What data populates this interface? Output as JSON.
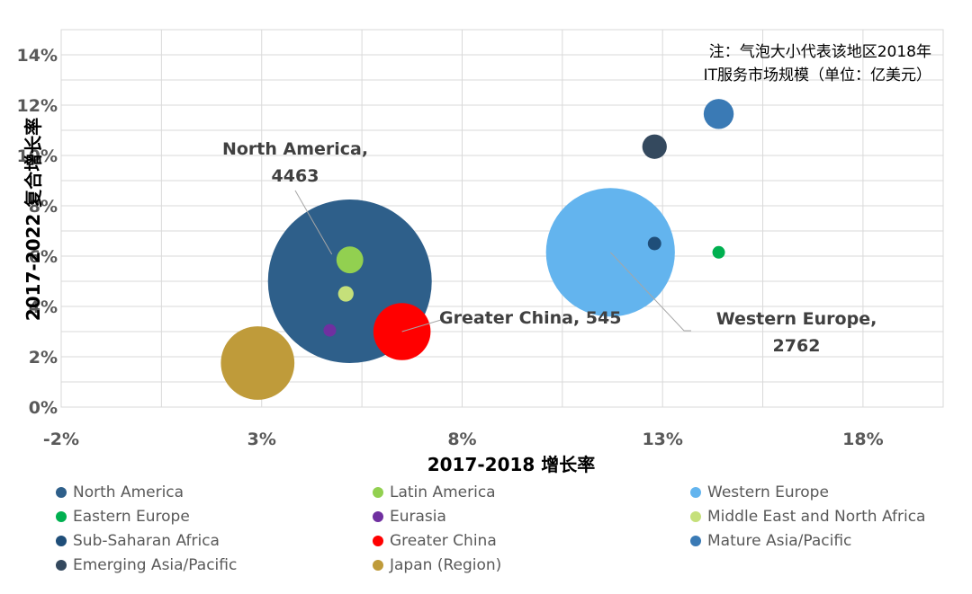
{
  "chart_data": {
    "type": "bubble",
    "xlabel": "2017-2018 增长率",
    "ylabel": "2017-2022 复合增长率",
    "xlim": [
      -2,
      20
    ],
    "ylim": [
      0,
      15
    ],
    "x_ticks": [
      "-2%",
      "3%",
      "8%",
      "13%",
      "18%"
    ],
    "x_tick_values": [
      -2,
      3,
      8,
      13,
      18
    ],
    "y_ticks": [
      "0%",
      "2%",
      "4%",
      "6%",
      "8%",
      "10%",
      "12%",
      "14%"
    ],
    "y_tick_values": [
      0,
      2,
      4,
      6,
      8,
      10,
      12,
      14
    ],
    "grid": true,
    "legend_position": "bottom",
    "note_lines": [
      "注：气泡大小代表该地区2018年",
      "IT服务市场规模（单位：亿美元）"
    ],
    "series": [
      {
        "name": "North America",
        "x": 5.2,
        "y": 5.0,
        "size": 4463,
        "color": "#2E5F8A"
      },
      {
        "name": "Latin America",
        "x": 5.2,
        "y": 5.85,
        "size": 120,
        "color": "#92D050"
      },
      {
        "name": "Western Europe",
        "x": 11.7,
        "y": 6.15,
        "size": 2762,
        "color": "#63B4EE"
      },
      {
        "name": "Eastern Europe",
        "x": 14.4,
        "y": 6.15,
        "size": 25,
        "color": "#00B050"
      },
      {
        "name": "Eurasia",
        "x": 4.7,
        "y": 3.05,
        "size": 8,
        "color": "#7030A0"
      },
      {
        "name": "Middle East and North Africa",
        "x": 5.1,
        "y": 4.5,
        "size": 40,
        "color": "#C5E07A"
      },
      {
        "name": "Sub-Saharan Africa",
        "x": 12.8,
        "y": 6.5,
        "size": 30,
        "color": "#1F4E79"
      },
      {
        "name": "Greater China",
        "x": 6.5,
        "y": 3.0,
        "size": 545,
        "color": "#FF0000"
      },
      {
        "name": "Mature Asia/Pacific",
        "x": 14.4,
        "y": 11.65,
        "size": 150,
        "color": "#3A7AB5"
      },
      {
        "name": "Emerging Asia/Pacific",
        "x": 12.8,
        "y": 10.35,
        "size": 100,
        "color": "#34495E"
      },
      {
        "name": "Japan (Region)",
        "x": 2.9,
        "y": 1.75,
        "size": 900,
        "color": "#BF9B3A"
      }
    ],
    "callouts": [
      {
        "series": "North America",
        "lines": [
          "North America,",
          "4463"
        ]
      },
      {
        "series": "Greater China",
        "lines": [
          "Greater China, 545"
        ]
      },
      {
        "series": "Western Europe",
        "lines": [
          "Western Europe,",
          "2762"
        ]
      }
    ]
  }
}
